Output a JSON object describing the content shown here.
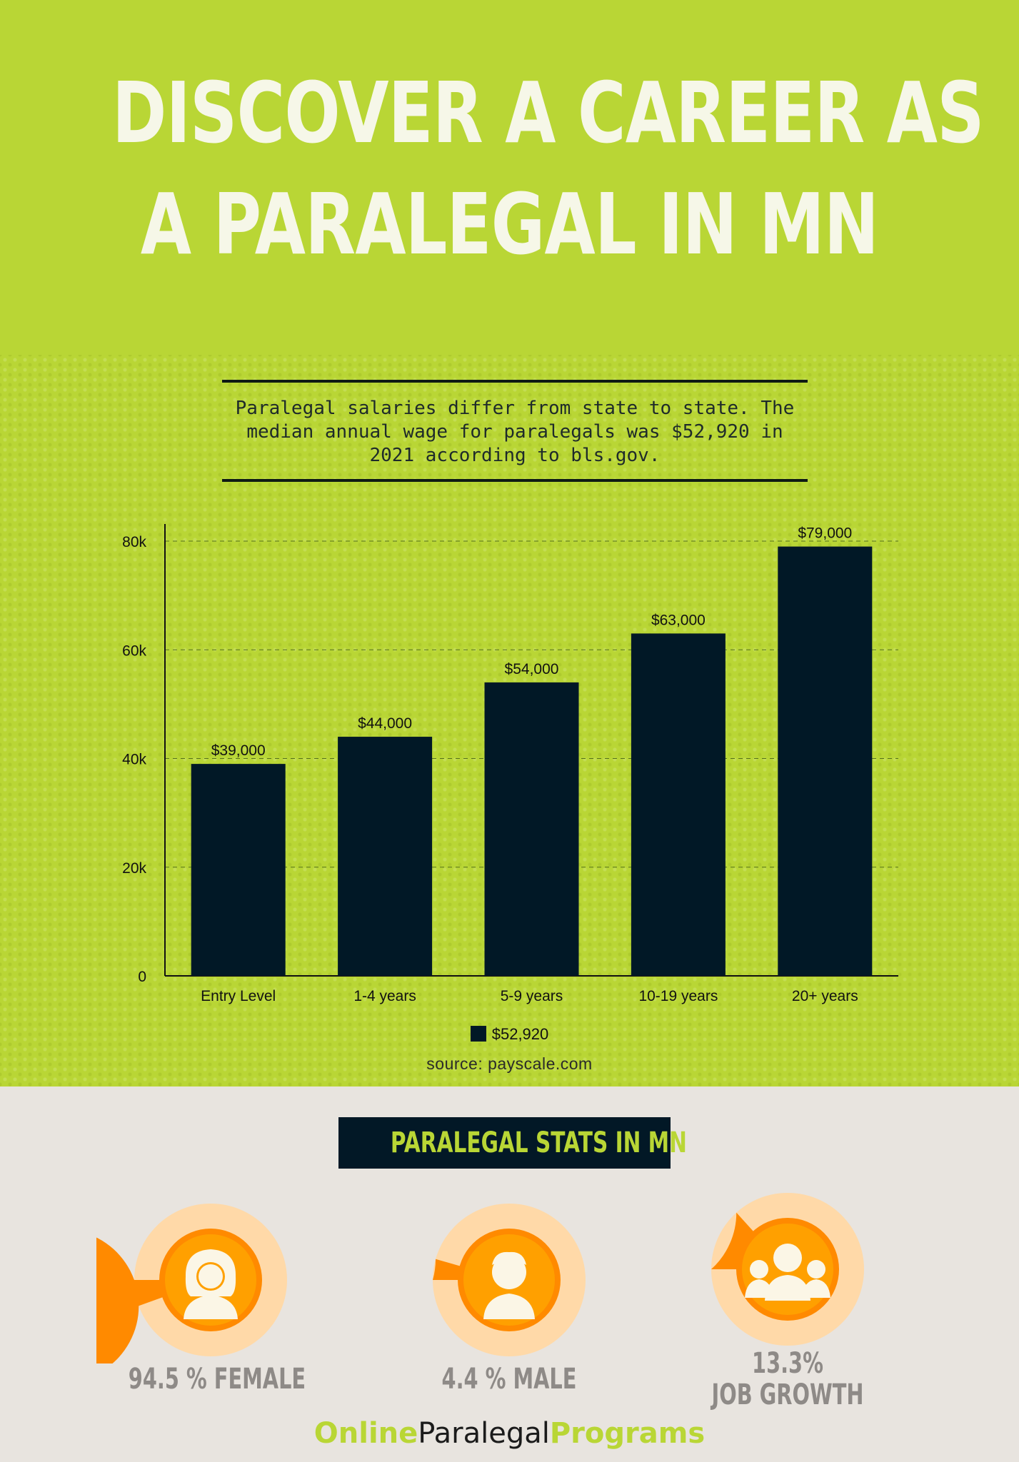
{
  "title_line1": "DISCOVER A CAREER AS",
  "title_line2": "A PARALEGAL IN MN",
  "intro": "Paralegal salaries differ from state to state. The median annual wage for paralegals was $52,920 in 2021 according to bls.gov.",
  "chart_data": {
    "type": "bar",
    "categories": [
      "Entry Level",
      "1-4 years",
      "5-9 years",
      "10-19 years",
      "20+ years"
    ],
    "series": [
      {
        "name": "$52,920",
        "values": [
          39000,
          44000,
          54000,
          63000,
          79000
        ]
      }
    ],
    "data_labels": [
      "$39,000",
      "$44,000",
      "$54,000",
      "$63,000",
      "$79,000"
    ],
    "yticks": [
      "0",
      "20k",
      "40k",
      "60k",
      "80k"
    ],
    "ylim": [
      0,
      80000
    ],
    "grid": true,
    "legend_position": "bottom",
    "bar_color": "#011826"
  },
  "source": "source: payscale.com",
  "stats_title": "PARALEGAL STATS IN MN",
  "stats": [
    {
      "label": "94.5 % FEMALE",
      "value": 0.945,
      "icon": "female-icon"
    },
    {
      "label": "4.4 % MALE",
      "value": 0.044,
      "icon": "male-icon"
    },
    {
      "label_line1": "13.3%",
      "label_line2": "JOB GROWTH",
      "value": 0.133,
      "icon": "group-icon"
    }
  ],
  "brand": {
    "part1": "Online",
    "part2": "Paralegal",
    "part3": "Programs"
  },
  "colors": {
    "lime": "#b9d635",
    "navy": "#011826",
    "orange": "#ff8a00",
    "peach": "#ffd9a8",
    "gray_bg": "#e8e4df"
  }
}
